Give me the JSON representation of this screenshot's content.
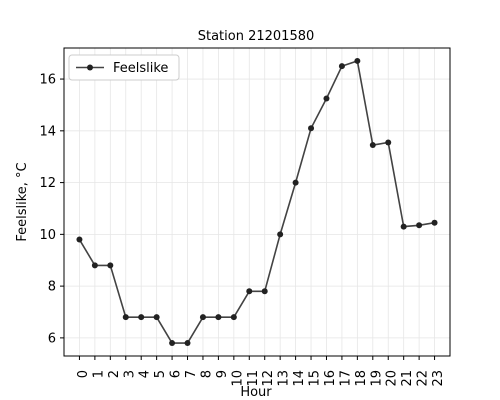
{
  "chart_data": {
    "type": "line",
    "title": "Station 21201580",
    "xlabel": "Hour",
    "ylabel": "Feelslike, °C",
    "x": [
      0,
      1,
      2,
      3,
      4,
      5,
      6,
      7,
      8,
      9,
      10,
      11,
      12,
      13,
      14,
      15,
      16,
      17,
      18,
      19,
      20,
      21,
      22,
      23
    ],
    "x_tick_labels": [
      "0",
      "1",
      "2",
      "3",
      "4",
      "5",
      "6",
      "7",
      "8",
      "9",
      "10",
      "11",
      "12",
      "13",
      "14",
      "15",
      "16",
      "17",
      "18",
      "19",
      "20",
      "21",
      "22",
      "23"
    ],
    "series": [
      {
        "name": "Feelslike",
        "color": "#222222",
        "values": [
          9.8,
          8.8,
          8.8,
          6.8,
          6.8,
          6.8,
          5.8,
          5.8,
          6.8,
          6.8,
          6.8,
          7.8,
          7.8,
          10.0,
          12.0,
          14.1,
          15.25,
          16.5,
          16.7,
          13.45,
          13.55,
          10.3,
          10.35,
          10.45
        ]
      }
    ],
    "xlim": [
      -1,
      24
    ],
    "ylim": [
      5.3,
      17.2
    ],
    "y_ticks": [
      6,
      8,
      10,
      12,
      14,
      16
    ],
    "y_tick_labels": [
      "6",
      "8",
      "10",
      "12",
      "14",
      "16"
    ],
    "grid": true,
    "legend_position": "upper-left"
  }
}
